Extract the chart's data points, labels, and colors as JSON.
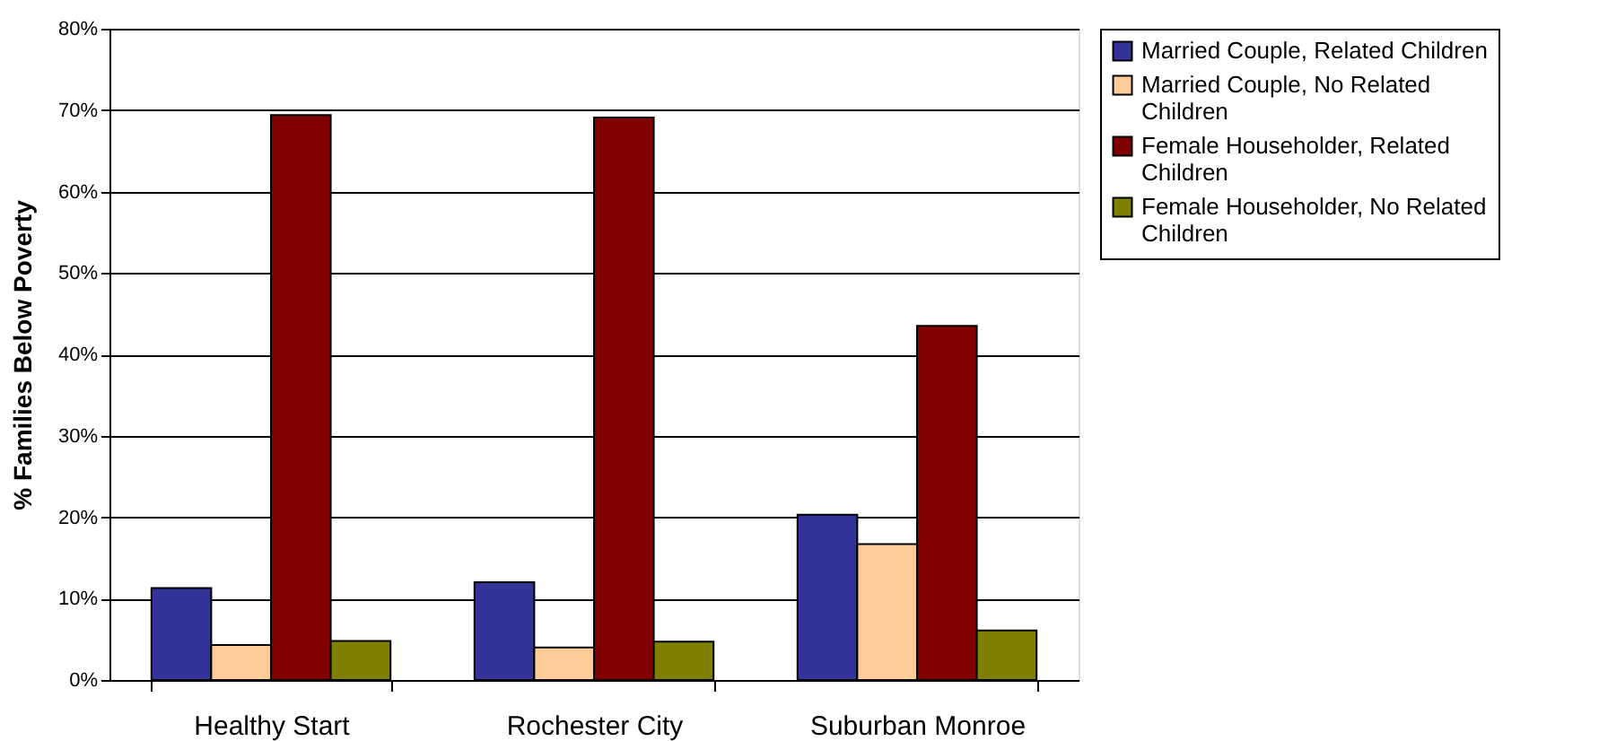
{
  "chart_data": {
    "type": "bar",
    "ylabel": "% Families Below Poverty",
    "categories": [
      "Healthy Start",
      "Rochester City",
      "Suburban Monroe"
    ],
    "series": [
      {
        "name": "Married Couple, Related Children",
        "color": "#333399",
        "values": [
          11.3,
          12.0,
          20.3
        ]
      },
      {
        "name": "Married Couple, No Related Children",
        "color": "#ffcc99",
        "values": [
          4.3,
          4.0,
          16.7
        ]
      },
      {
        "name": "Female Householder, Related Children",
        "color": "#800000",
        "values": [
          69.4,
          69.1,
          43.5
        ]
      },
      {
        "name": "Female Householder, No Related Children",
        "color": "#808000",
        "values": [
          4.8,
          4.7,
          6.1
        ]
      }
    ],
    "ylim": [
      0,
      80
    ],
    "yticks": [
      {
        "value": 0,
        "label": "0%"
      },
      {
        "value": 10,
        "label": "10%"
      },
      {
        "value": 20,
        "label": "20%"
      },
      {
        "value": 30,
        "label": "30%"
      },
      {
        "value": 40,
        "label": "40%"
      },
      {
        "value": 50,
        "label": "50%"
      },
      {
        "value": 60,
        "label": "60%"
      },
      {
        "value": 70,
        "label": "70%"
      },
      {
        "value": 80,
        "label": "80%"
      }
    ],
    "grid": "y",
    "legend": "right"
  }
}
